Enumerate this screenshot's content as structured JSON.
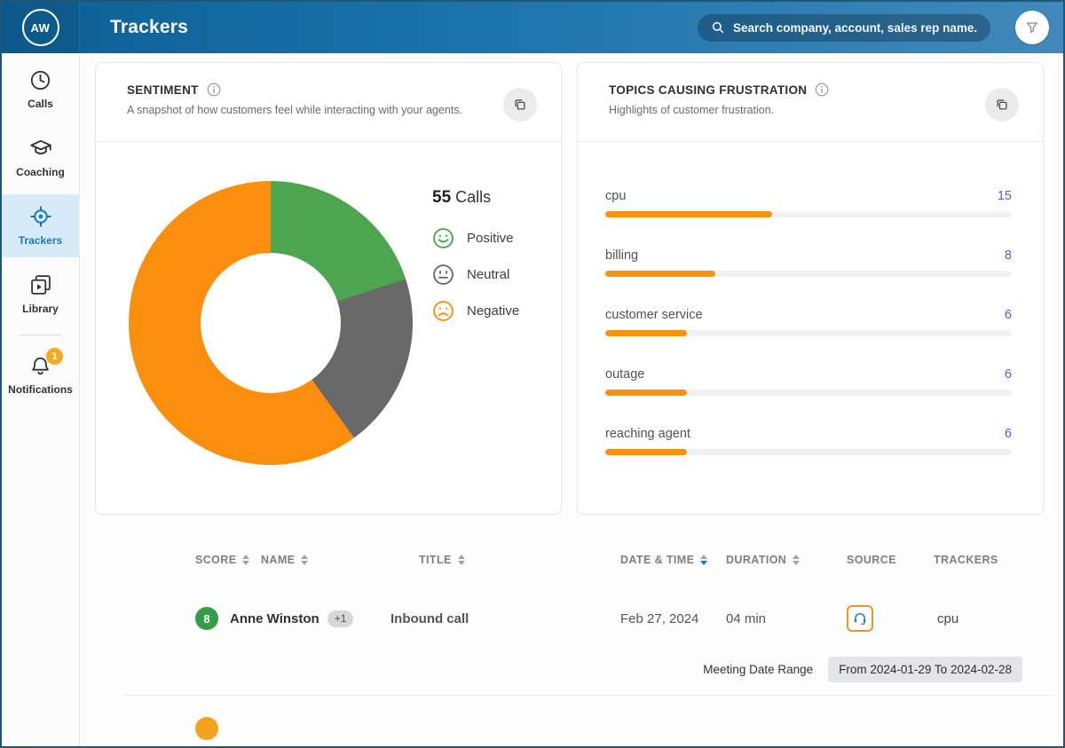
{
  "header": {
    "avatar_initials": "AW",
    "title": "Trackers",
    "search_placeholder": "Search company, account, sales rep name..."
  },
  "sidebar": {
    "items": [
      {
        "label": "Calls",
        "icon": "clock-icon",
        "active": false
      },
      {
        "label": "Coaching",
        "icon": "graduation-cap-icon",
        "active": false
      },
      {
        "label": "Trackers",
        "icon": "target-icon",
        "active": true
      },
      {
        "label": "Library",
        "icon": "library-icon",
        "active": false
      },
      {
        "label": "Notifications",
        "icon": "bell-icon",
        "active": false,
        "badge": "1"
      }
    ]
  },
  "sentiment_card": {
    "title": "SENTIMENT",
    "subtitle": "A snapshot of how customers feel while interacting with your agents.",
    "total_count": "55",
    "total_unit": "Calls",
    "legend": [
      {
        "label": "Positive",
        "icon": "smiley-positive-icon",
        "color": "#4da64f"
      },
      {
        "label": "Neutral",
        "icon": "smiley-neutral-icon",
        "color": "#696969"
      },
      {
        "label": "Negative",
        "icon": "smiley-negative-icon",
        "color": "#fb8e0c"
      }
    ]
  },
  "topics_card": {
    "title": "TOPICS CAUSING FRUSTRATION",
    "subtitle": "Highlights of customer frustration."
  },
  "chart_data": [
    {
      "type": "pie",
      "subtype": "donut",
      "title": "SENTIMENT",
      "labels": [
        "Positive",
        "Neutral",
        "Negative"
      ],
      "values": [
        11,
        11,
        33
      ],
      "total_calls": 55,
      "colors": [
        "#4da64f",
        "#696969",
        "#fb8e0c"
      ],
      "start_angle_deg": 0,
      "legend_position": "right"
    },
    {
      "type": "bar",
      "orientation": "horizontal",
      "title": "TOPICS CAUSING FRUSTRATION",
      "categories": [
        "cpu",
        "billing",
        "customer service",
        "outage",
        "reaching agent"
      ],
      "values": [
        15,
        8,
        6,
        6,
        6
      ],
      "bar_pcts": [
        41,
        27,
        20,
        20,
        20
      ],
      "bar_color": "#f8920f",
      "track_color": "#f1f1f3",
      "value_color": "#5161ce"
    }
  ],
  "table": {
    "columns": [
      {
        "label": "SCORE",
        "sortable": true
      },
      {
        "label": "NAME",
        "sortable": true
      },
      {
        "label": "TITLE",
        "sortable": true
      },
      {
        "label": "DATE & TIME",
        "sortable": true,
        "sort_active": "desc"
      },
      {
        "label": "DURATION",
        "sortable": true
      },
      {
        "label": "SOURCE",
        "sortable": false
      },
      {
        "label": "TRACKERS",
        "sortable": false
      }
    ],
    "rows": [
      {
        "score": "8",
        "score_color": "#349c47",
        "name": "Anne Winston",
        "extra_badge": "+1",
        "title": "Inbound call",
        "date": "Feb 27, 2024",
        "duration": "04 min",
        "source_icon": "headset-icon",
        "trackers": "cpu"
      }
    ],
    "meeting_range": {
      "label": "Meeting Date Range",
      "value": "From 2024-01-29 To 2024-02-28"
    }
  },
  "colors": {
    "header_gradient_start": "#0c5f94",
    "header_gradient_end": "#4189ba",
    "sidebar_active_bg": "#d7eaf7",
    "sidebar_active_fg": "#1878be",
    "notification_badge": "#f6a81f",
    "negative_orange": "#fb8e0c",
    "positive_green": "#4da64f",
    "neutral_gray": "#696969",
    "source_chip_border": "#f59421",
    "headset_blue": "#2d7fc1"
  }
}
